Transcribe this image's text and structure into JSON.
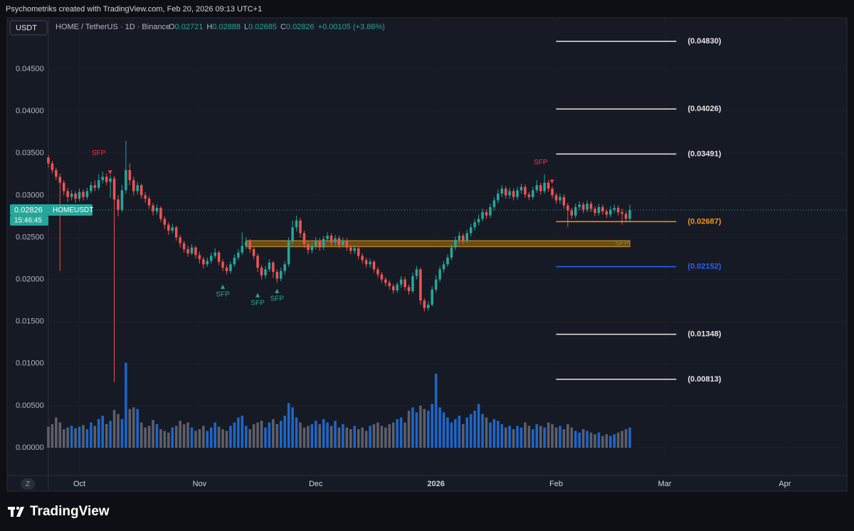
{
  "header": {
    "attribution": "Psychometriks created with TradingView.com, Feb 20, 2026 09:13 UTC+1",
    "currency": "USDT",
    "symbol_line": "HOME / TetherUS · 1D · Binance",
    "ohlc": [
      {
        "label": "O",
        "value": "0.02721"
      },
      {
        "label": "H",
        "value": "0.02888"
      },
      {
        "label": "L",
        "value": "0.02685"
      },
      {
        "label": "C",
        "value": "0.02826"
      }
    ],
    "change": "+0.00105 (+3.86%)"
  },
  "chart_data": {
    "type": "candlestick",
    "up_color": "#26a69a",
    "down_color": "#ef5350",
    "volume_up_color": "#1f66c9",
    "volume_down_color": "#5d606b",
    "grid": true,
    "xlim": [
      -1,
      206
    ],
    "ylim": [
      -0.0033,
      0.0511
    ],
    "xticks": [
      {
        "value": 8,
        "label": "Oct"
      },
      {
        "value": 39,
        "label": "Nov"
      },
      {
        "value": 69,
        "label": "Dec"
      },
      {
        "value": 100,
        "label": "2026"
      },
      {
        "value": 131,
        "label": "Feb"
      },
      {
        "value": 159,
        "label": "Mar"
      },
      {
        "value": 190,
        "label": "Apr"
      }
    ],
    "yticks": [
      {
        "value": 0,
        "label": "0.00000"
      },
      {
        "value": 0.005,
        "label": "0.00500"
      },
      {
        "value": 0.01,
        "label": "0.01000"
      },
      {
        "value": 0.015,
        "label": "0.01500"
      },
      {
        "value": 0.02,
        "label": "0.02000"
      },
      {
        "value": 0.025,
        "label": "0.02500"
      },
      {
        "value": 0.03,
        "label": "0.03000"
      },
      {
        "value": 0.035,
        "label": "0.03500"
      },
      {
        "value": 0.04,
        "label": "0.04000"
      },
      {
        "value": 0.045,
        "label": "0.04500"
      }
    ],
    "open": [
      0.0345,
      0.0338,
      0.033,
      0.0322,
      0.0315,
      0.0305,
      0.0298,
      0.0302,
      0.0296,
      0.0304,
      0.0298,
      0.0305,
      0.0312,
      0.0309,
      0.0318,
      0.0322,
      0.0316,
      0.032,
      0.0295,
      0.0283,
      0.0306,
      0.033,
      0.0318,
      0.0305,
      0.0312,
      0.03,
      0.0296,
      0.0288,
      0.0281,
      0.0285,
      0.0272,
      0.0265,
      0.0258,
      0.0262,
      0.025,
      0.0243,
      0.0236,
      0.0231,
      0.0238,
      0.0229,
      0.0224,
      0.0218,
      0.0222,
      0.0228,
      0.0232,
      0.0221,
      0.0214,
      0.021,
      0.0218,
      0.0226,
      0.0232,
      0.024,
      0.0245,
      0.0236,
      0.0228,
      0.0214,
      0.0205,
      0.0212,
      0.022,
      0.0209,
      0.0201,
      0.021,
      0.0218,
      0.0245,
      0.0262,
      0.027,
      0.0255,
      0.0242,
      0.0235,
      0.024,
      0.0246,
      0.0238,
      0.0248,
      0.0252,
      0.0244,
      0.0249,
      0.0241,
      0.0246,
      0.0238,
      0.0234,
      0.0237,
      0.0228,
      0.0223,
      0.0218,
      0.0221,
      0.0212,
      0.0206,
      0.02,
      0.0196,
      0.0192,
      0.0187,
      0.0194,
      0.02,
      0.0191,
      0.0186,
      0.0204,
      0.0212,
      0.0175,
      0.0166,
      0.017,
      0.0188,
      0.02,
      0.0212,
      0.0218,
      0.0226,
      0.0238,
      0.0247,
      0.0252,
      0.0246,
      0.0255,
      0.0262,
      0.0268,
      0.0272,
      0.028,
      0.0276,
      0.0286,
      0.0294,
      0.0302,
      0.0308,
      0.03,
      0.0305,
      0.0298,
      0.0306,
      0.031,
      0.0301,
      0.0298,
      0.0306,
      0.0312,
      0.0305,
      0.0315,
      0.0308,
      0.03,
      0.0294,
      0.0298,
      0.0288,
      0.0282,
      0.0276,
      0.0286,
      0.0289,
      0.0283,
      0.029,
      0.0284,
      0.0279,
      0.0286,
      0.0281,
      0.0277,
      0.0283,
      0.0285,
      0.028,
      0.0278,
      0.02721
    ],
    "high": [
      0.0348,
      0.0341,
      0.0333,
      0.0326,
      0.0318,
      0.0309,
      0.0306,
      0.0305,
      0.0308,
      0.0307,
      0.0309,
      0.0316,
      0.0318,
      0.0325,
      0.0328,
      0.0326,
      0.0324,
      0.0323,
      0.03,
      0.0312,
      0.0365,
      0.0338,
      0.0322,
      0.0316,
      0.0314,
      0.0304,
      0.0299,
      0.0291,
      0.0289,
      0.0287,
      0.0275,
      0.0268,
      0.0266,
      0.0264,
      0.0253,
      0.0246,
      0.024,
      0.0242,
      0.024,
      0.0233,
      0.0227,
      0.0226,
      0.0232,
      0.0237,
      0.0234,
      0.0224,
      0.0217,
      0.0221,
      0.023,
      0.0236,
      0.0256,
      0.025,
      0.0248,
      0.0239,
      0.0231,
      0.0217,
      0.0216,
      0.0224,
      0.0222,
      0.0212,
      0.0214,
      0.0222,
      0.025,
      0.027,
      0.0276,
      0.0273,
      0.0258,
      0.0245,
      0.0244,
      0.025,
      0.0249,
      0.0252,
      0.0256,
      0.0255,
      0.0253,
      0.0252,
      0.025,
      0.0249,
      0.0241,
      0.0241,
      0.0239,
      0.0231,
      0.0226,
      0.0225,
      0.0223,
      0.0215,
      0.0209,
      0.0203,
      0.0199,
      0.0195,
      0.0197,
      0.0204,
      0.0203,
      0.0194,
      0.0208,
      0.0216,
      0.0214,
      0.0178,
      0.0174,
      0.0192,
      0.0205,
      0.0216,
      0.0222,
      0.023,
      0.0242,
      0.0251,
      0.0257,
      0.0255,
      0.0259,
      0.0266,
      0.0272,
      0.0277,
      0.0284,
      0.0283,
      0.029,
      0.0298,
      0.0307,
      0.0312,
      0.0311,
      0.0309,
      0.0308,
      0.031,
      0.0314,
      0.0313,
      0.0304,
      0.031,
      0.0318,
      0.0315,
      0.0325,
      0.0318,
      0.0311,
      0.0303,
      0.0302,
      0.0301,
      0.0291,
      0.0285,
      0.029,
      0.0293,
      0.0292,
      0.0294,
      0.0293,
      0.0287,
      0.029,
      0.0289,
      0.0284,
      0.0287,
      0.0289,
      0.0288,
      0.0284,
      0.0281,
      0.02888
    ],
    "low": [
      0.0333,
      0.0326,
      0.0318,
      0.021,
      0.03,
      0.0292,
      0.0294,
      0.0291,
      0.0293,
      0.0294,
      0.0295,
      0.0302,
      0.0305,
      0.0306,
      0.0314,
      0.0312,
      0.0297,
      0.0078,
      0.0275,
      0.028,
      0.0302,
      0.0312,
      0.03,
      0.0301,
      0.0296,
      0.0291,
      0.0284,
      0.0276,
      0.0277,
      0.0268,
      0.026,
      0.0253,
      0.0255,
      0.0246,
      0.0238,
      0.0232,
      0.0227,
      0.0229,
      0.0225,
      0.0219,
      0.0213,
      0.0215,
      0.0219,
      0.0225,
      0.0217,
      0.021,
      0.0206,
      0.0207,
      0.0215,
      0.0223,
      0.0229,
      0.0236,
      0.0232,
      0.0224,
      0.0209,
      0.02,
      0.0201,
      0.0209,
      0.0202,
      0.0196,
      0.0198,
      0.0206,
      0.0215,
      0.0241,
      0.0257,
      0.025,
      0.0237,
      0.023,
      0.0231,
      0.0236,
      0.0234,
      0.0235,
      0.0244,
      0.024,
      0.024,
      0.0237,
      0.0238,
      0.0234,
      0.023,
      0.023,
      0.0224,
      0.0219,
      0.0214,
      0.0214,
      0.0208,
      0.0202,
      0.0196,
      0.0192,
      0.0188,
      0.0183,
      0.0184,
      0.019,
      0.0187,
      0.0182,
      0.0184,
      0.02,
      0.017,
      0.0162,
      0.0163,
      0.0168,
      0.0185,
      0.0197,
      0.0208,
      0.0215,
      0.0223,
      0.0235,
      0.0243,
      0.0242,
      0.0243,
      0.0251,
      0.0258,
      0.0264,
      0.0269,
      0.0272,
      0.0273,
      0.0282,
      0.029,
      0.0298,
      0.0296,
      0.0296,
      0.0294,
      0.0295,
      0.0302,
      0.0297,
      0.0294,
      0.0295,
      0.0303,
      0.0301,
      0.0302,
      0.0304,
      0.0296,
      0.029,
      0.029,
      0.0284,
      0.0262,
      0.0272,
      0.0273,
      0.0282,
      0.0279,
      0.028,
      0.028,
      0.0275,
      0.0276,
      0.0277,
      0.0273,
      0.0274,
      0.0279,
      0.0276,
      0.0265,
      0.0268,
      0.02685
    ],
    "close": [
      0.0338,
      0.033,
      0.0322,
      0.0315,
      0.0305,
      0.0298,
      0.0302,
      0.0296,
      0.0304,
      0.0298,
      0.0305,
      0.0312,
      0.0309,
      0.0318,
      0.0322,
      0.0316,
      0.032,
      0.0295,
      0.0283,
      0.0306,
      0.033,
      0.0318,
      0.0305,
      0.0312,
      0.03,
      0.0296,
      0.0288,
      0.0281,
      0.0285,
      0.0272,
      0.0265,
      0.0258,
      0.0262,
      0.025,
      0.0243,
      0.0236,
      0.0231,
      0.0238,
      0.0229,
      0.0224,
      0.0218,
      0.0222,
      0.0228,
      0.0232,
      0.0221,
      0.0214,
      0.021,
      0.0218,
      0.0226,
      0.0232,
      0.024,
      0.0245,
      0.0236,
      0.0228,
      0.0214,
      0.0205,
      0.0212,
      0.022,
      0.0209,
      0.0201,
      0.021,
      0.0218,
      0.0245,
      0.0262,
      0.027,
      0.0255,
      0.0242,
      0.0235,
      0.024,
      0.0246,
      0.0238,
      0.0248,
      0.0252,
      0.0244,
      0.0249,
      0.0241,
      0.0246,
      0.0238,
      0.0234,
      0.0237,
      0.0228,
      0.0223,
      0.0218,
      0.0221,
      0.0212,
      0.0206,
      0.02,
      0.0196,
      0.0192,
      0.0187,
      0.0194,
      0.02,
      0.0191,
      0.0186,
      0.0204,
      0.0212,
      0.0175,
      0.0166,
      0.017,
      0.0188,
      0.02,
      0.0212,
      0.0218,
      0.0226,
      0.0238,
      0.0247,
      0.0252,
      0.0246,
      0.0255,
      0.0262,
      0.0268,
      0.0272,
      0.028,
      0.0276,
      0.0286,
      0.0294,
      0.0302,
      0.0308,
      0.03,
      0.0305,
      0.0298,
      0.0306,
      0.031,
      0.0301,
      0.0298,
      0.0306,
      0.0312,
      0.0305,
      0.0315,
      0.0308,
      0.03,
      0.0294,
      0.0298,
      0.0288,
      0.0282,
      0.0276,
      0.0286,
      0.0289,
      0.0283,
      0.029,
      0.0284,
      0.0279,
      0.0286,
      0.0281,
      0.0277,
      0.0283,
      0.0285,
      0.028,
      0.0278,
      0.02721,
      0.02826
    ],
    "volume": [
      0.0025,
      0.0028,
      0.0036,
      0.003,
      0.0022,
      0.0024,
      0.0026,
      0.0023,
      0.0025,
      0.0027,
      0.0022,
      0.003,
      0.0026,
      0.0034,
      0.0038,
      0.0028,
      0.0032,
      0.0045,
      0.004,
      0.0034,
      0.0101,
      0.0046,
      0.0048,
      0.0046,
      0.003,
      0.0024,
      0.0026,
      0.0033,
      0.0028,
      0.0022,
      0.002,
      0.0018,
      0.0024,
      0.0026,
      0.0032,
      0.0028,
      0.003,
      0.0024,
      0.002,
      0.0022,
      0.0026,
      0.002,
      0.0024,
      0.003,
      0.0025,
      0.0022,
      0.002,
      0.0026,
      0.003,
      0.0036,
      0.0038,
      0.0026,
      0.0022,
      0.0028,
      0.003,
      0.0032,
      0.0024,
      0.003,
      0.0034,
      0.0028,
      0.0032,
      0.0038,
      0.0053,
      0.0048,
      0.0036,
      0.003,
      0.0024,
      0.0026,
      0.0028,
      0.0032,
      0.0028,
      0.0034,
      0.003,
      0.0026,
      0.0032,
      0.0024,
      0.0028,
      0.0024,
      0.0022,
      0.0026,
      0.0022,
      0.0024,
      0.002,
      0.0026,
      0.0028,
      0.003,
      0.0026,
      0.0024,
      0.0028,
      0.003,
      0.0034,
      0.0036,
      0.003,
      0.0044,
      0.0048,
      0.0042,
      0.005,
      0.0046,
      0.0044,
      0.0052,
      0.0088,
      0.0048,
      0.0042,
      0.0036,
      0.003,
      0.0034,
      0.0038,
      0.0028,
      0.0036,
      0.004,
      0.0044,
      0.0052,
      0.004,
      0.0036,
      0.003,
      0.0034,
      0.0032,
      0.0028,
      0.0024,
      0.0026,
      0.0022,
      0.0026,
      0.0024,
      0.003,
      0.0026,
      0.0022,
      0.0028,
      0.0026,
      0.0024,
      0.003,
      0.0028,
      0.0024,
      0.0026,
      0.0022,
      0.0028,
      0.0024,
      0.002,
      0.0018,
      0.0022,
      0.002,
      0.0018,
      0.0016,
      0.0018,
      0.0014,
      0.0016,
      0.0014,
      0.0016,
      0.0018,
      0.002,
      0.0022,
      0.0024
    ],
    "zone": {
      "x": [
        51,
        150
      ],
      "y": [
        0.0239,
        0.0246
      ],
      "color": "#c98a12"
    },
    "levels_x": [
      131,
      162
    ],
    "levels": [
      {
        "value": 0.0483,
        "label": "(0.04830)",
        "color": "#e6e6e6"
      },
      {
        "value": 0.04026,
        "label": "(0.04026)",
        "color": "#e6e6e6"
      },
      {
        "value": 0.03491,
        "label": "(0.03491)",
        "color": "#e6e6e6"
      },
      {
        "value": 0.02687,
        "label": "(0.02687)",
        "color": "#f7931a"
      },
      {
        "value": 0.02152,
        "label": "(0.02152)",
        "color": "#2962ff"
      },
      {
        "value": 0.01348,
        "label": "(0.01348)",
        "color": "#e6e6e6"
      },
      {
        "value": 0.00813,
        "label": "(0.00813)",
        "color": "#e6e6e6"
      }
    ],
    "annotations": [
      {
        "text": "SFP",
        "x": 13,
        "y": 0.035,
        "color": "#f23645",
        "marker": "down"
      },
      {
        "text": "SFP",
        "x": 127,
        "y": 0.0339,
        "color": "#f23645",
        "marker": "down"
      },
      {
        "text": "SFP",
        "x": 45,
        "y": 0.0182,
        "color": "#26a69a",
        "marker": "up"
      },
      {
        "text": "SFP",
        "x": 54,
        "y": 0.0172,
        "color": "#26a69a",
        "marker": "up"
      },
      {
        "text": "SFP",
        "x": 59,
        "y": 0.0177,
        "color": "#26a69a",
        "marker": "up"
      },
      {
        "text": "SFP",
        "x": 148,
        "y": 0.0243,
        "color": "#8c8a3a",
        "marker": "none"
      }
    ],
    "last_price_label": "0.02826",
    "symbol": "HOMEUSDT",
    "countdown": "15:46:45"
  },
  "footer": {
    "logo": "TradingView",
    "reset_button": "Z"
  }
}
